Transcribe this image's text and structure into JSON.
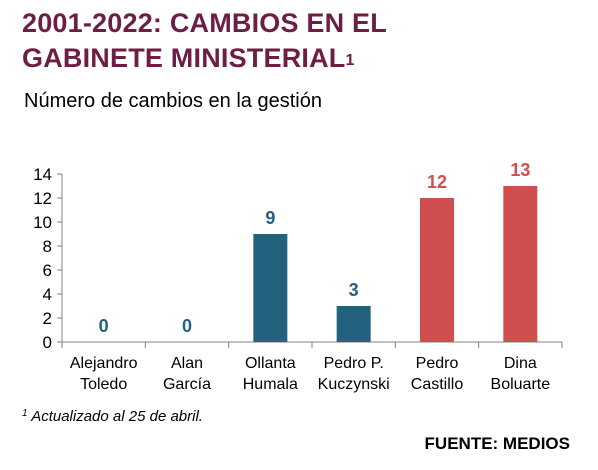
{
  "title": {
    "line1": "2001-2022: CAMBIOS EN EL",
    "line2": "GABINETE MINISTERIAL",
    "superscript": "1"
  },
  "subtitle": "Número de cambios en la gestión",
  "footnote": {
    "marker": "1",
    "text": "Actualizado al 25 de abril."
  },
  "source": "FUENTE: MEDIOS",
  "chart_data": {
    "type": "bar",
    "categories": [
      [
        "Alejandro",
        "Toledo"
      ],
      [
        "Alan",
        "García"
      ],
      [
        "Ollanta",
        "Humala"
      ],
      [
        "Pedro P.",
        "Kuczynski"
      ],
      [
        "Pedro",
        "Castillo"
      ],
      [
        "Dina",
        "Boluarte"
      ]
    ],
    "values": [
      0,
      0,
      9,
      3,
      12,
      13
    ],
    "bar_colors": [
      "#23617f",
      "#23617f",
      "#23617f",
      "#23617f",
      "#cf4f4f",
      "#cf4f4f"
    ],
    "ylim": [
      0,
      14
    ],
    "yticks": [
      0,
      2,
      4,
      6,
      8,
      10,
      12,
      14
    ],
    "grid": false,
    "data_labels": true
  }
}
